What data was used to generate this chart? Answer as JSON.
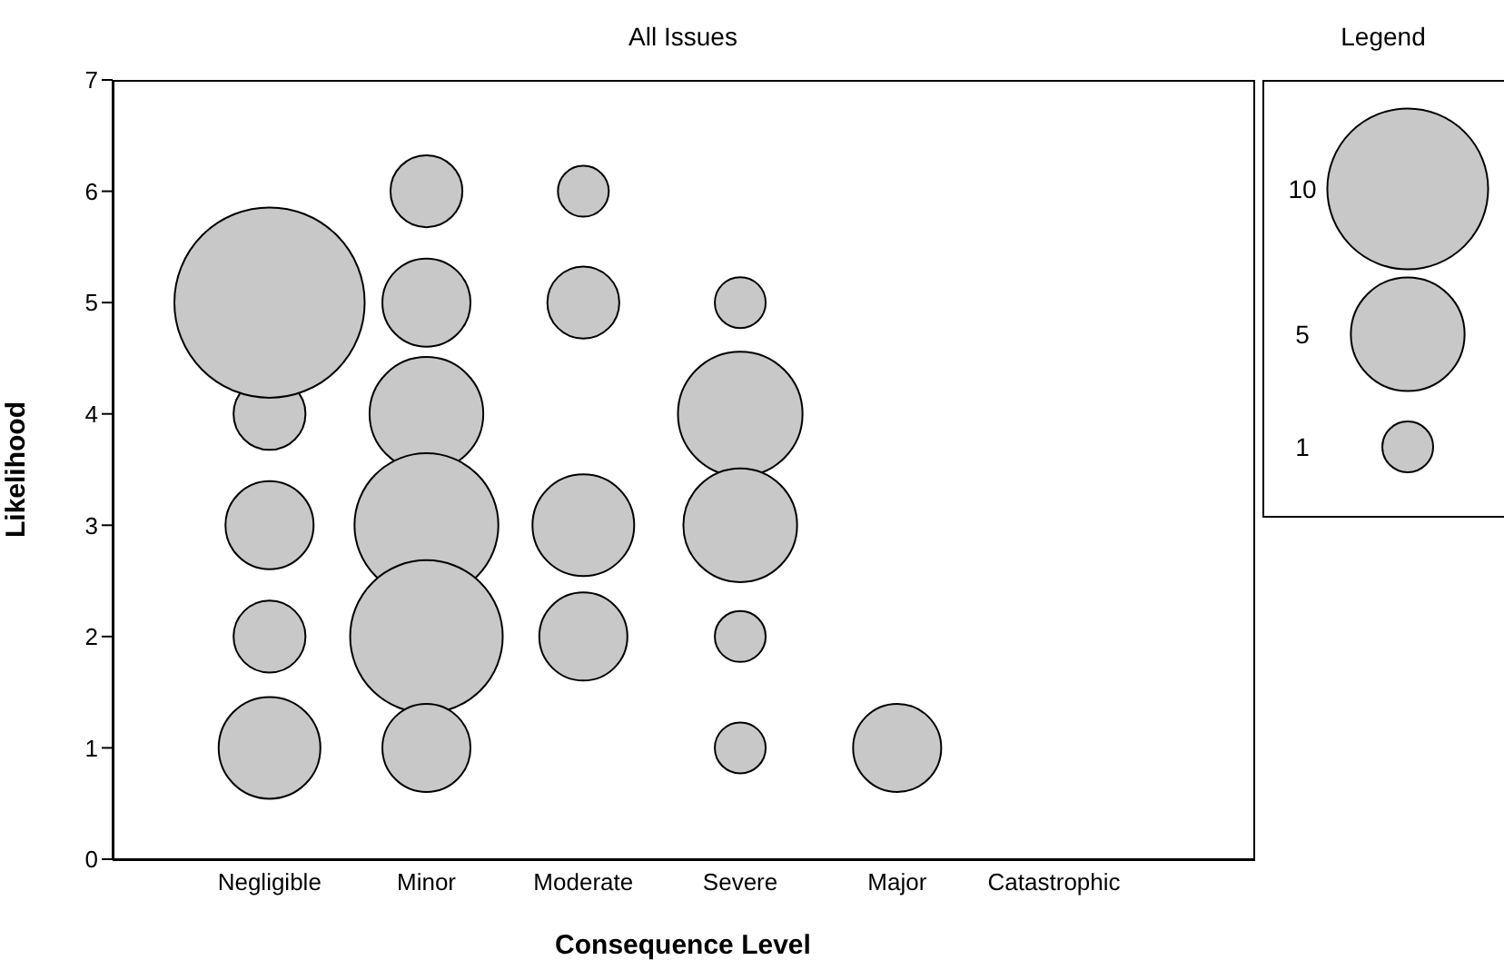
{
  "chart_data": {
    "type": "bubble",
    "title": "All Issues",
    "xlabel": "Consequence Level",
    "ylabel": "Likelihood",
    "legend_title": "Legend",
    "categories": [
      "Negligible",
      "Minor",
      "Moderate",
      "Severe",
      "Major",
      "Catastrophic"
    ],
    "series": [
      {
        "color": "#c8c8c8",
        "x": [
          "Negligible",
          "Negligible",
          "Negligible",
          "Negligible",
          "Negligible",
          "Minor",
          "Minor",
          "Minor",
          "Minor",
          "Minor",
          "Minor",
          "Moderate",
          "Moderate",
          "Moderate",
          "Moderate",
          "Severe",
          "Severe",
          "Severe",
          "Severe",
          "Severe",
          "Major"
        ],
        "values": [
          1,
          2,
          3,
          4,
          5,
          6,
          5,
          4,
          3,
          2,
          1,
          6,
          5,
          3,
          2,
          5,
          4,
          3,
          2,
          1,
          1
        ],
        "sizes": [
          4,
          2,
          3,
          2,
          14,
          2,
          3,
          5,
          8,
          9,
          3,
          1,
          2,
          4,
          3,
          1,
          6,
          5,
          1,
          1,
          3
        ]
      }
    ],
    "size_legend": [
      10,
      5,
      1
    ],
    "ylim": [
      0,
      7
    ],
    "yticks": [
      0,
      1,
      2,
      3,
      4,
      5,
      6,
      7
    ]
  }
}
